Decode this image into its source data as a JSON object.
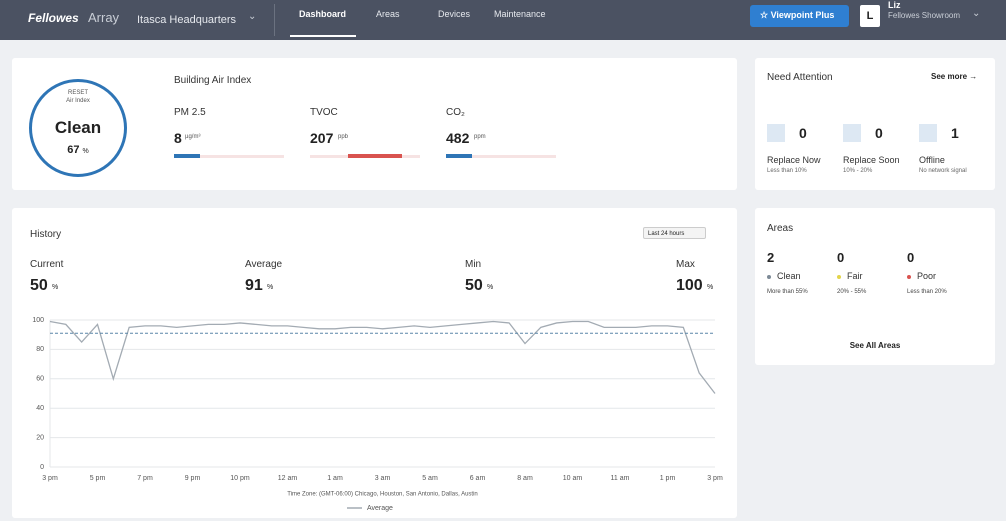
{
  "header": {
    "logo": "Fellowes",
    "product": "Array",
    "location": "Itasca Headquarters",
    "tabs": [
      "Dashboard",
      "Areas",
      "Devices",
      "Maintenance"
    ],
    "button": "Viewpoint Plus",
    "user": {
      "initial": "L",
      "name": "Liz",
      "org": "Fellowes Showroom"
    }
  },
  "air_index": {
    "ring": {
      "action": "RESET",
      "label": "Air Index",
      "status": "Clean",
      "value": 67,
      "unit": "%"
    },
    "title": "Building Air Index",
    "metrics": [
      {
        "name": "PM 2.5",
        "value": 8,
        "unit": "µg/m³"
      },
      {
        "name": "TVOC",
        "value": 207,
        "unit": "ppb"
      },
      {
        "name": "CO₂",
        "value": 482,
        "unit": "ppm"
      }
    ]
  },
  "attention": {
    "title": "Need Attention",
    "link": "See more →",
    "items": [
      {
        "label": "Replace Now",
        "count": 0,
        "note": "Less than 10%"
      },
      {
        "label": "Replace Soon",
        "count": 0,
        "note": "10% - 20%"
      },
      {
        "label": "Offline",
        "count": 1,
        "note": "No network signal"
      }
    ]
  },
  "history": {
    "title": "History",
    "range": "Last 24 hours",
    "stats": [
      {
        "label": "Current",
        "value": 50,
        "unit": "%"
      },
      {
        "label": "Average",
        "value": 91,
        "unit": "%"
      },
      {
        "label": "Min",
        "value": 50,
        "unit": "%"
      },
      {
        "label": "Max",
        "value": 100,
        "unit": "%"
      }
    ]
  },
  "chart_data": {
    "type": "line",
    "categories": [
      "3 pm",
      null,
      null,
      "5 pm",
      null,
      null,
      "7 pm",
      null,
      null,
      "9 pm",
      null,
      null,
      "10 pm",
      null,
      null,
      "12 am",
      null,
      null,
      "1 am",
      null,
      null,
      "3 am",
      null,
      null,
      "5 am",
      null,
      null,
      "6 am",
      null,
      null,
      "8 am",
      null,
      null,
      "10 am",
      null,
      null,
      "11 am",
      null,
      null,
      "1 pm",
      null,
      null,
      "3 pm"
    ],
    "series": [
      {
        "color": "#a3abb3",
        "values": [
          99,
          97,
          85,
          97,
          60,
          95,
          96,
          96,
          95,
          96,
          97,
          97,
          98,
          97,
          96,
          96,
          95,
          94,
          94,
          95,
          95,
          94,
          95,
          96,
          95,
          96,
          97,
          98,
          99,
          98,
          84,
          95,
          98,
          99,
          99,
          95,
          95,
          95,
          96,
          96,
          95,
          64,
          50
        ]
      }
    ],
    "average": {
      "name": "Average",
      "value": 91,
      "color": "#5a86a8"
    },
    "ylim": [
      0,
      100
    ],
    "yticks": [
      0,
      20,
      40,
      60,
      80,
      100
    ],
    "grid": true,
    "note": "Time Zone: (GMT-06:00) Chicago, Houston, San Antonio, Dallas, Austin"
  },
  "areas": {
    "title": "Areas",
    "link": "See All Areas",
    "items": [
      {
        "label": "Clean",
        "count": 2,
        "note": "More than 55%",
        "color": "#7d8a96"
      },
      {
        "label": "Fair",
        "count": 0,
        "note": "20% - 55%",
        "color": "#e3d44a"
      },
      {
        "label": "Poor",
        "count": 0,
        "note": "Less than 20%",
        "color": "#d9534f"
      }
    ]
  }
}
